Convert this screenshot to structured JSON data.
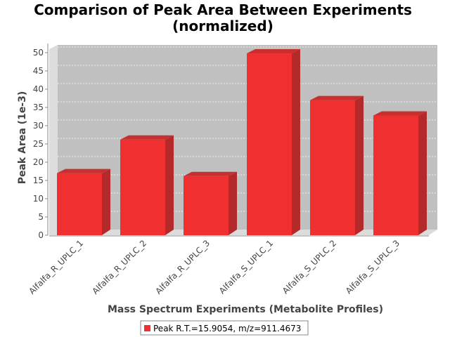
{
  "chart_data": {
    "type": "bar",
    "title": "Comparison of Peak Area Between Experiments (normalized)",
    "title_lines": [
      "Comparison of Peak Area Between Experiments",
      "(normalized)"
    ],
    "xlabel": "Mass Spectrum Experiments (Metabolite Profiles)",
    "ylabel": "Peak Area (1e-3)",
    "ylim": [
      0,
      50
    ],
    "yticks": [
      0,
      5,
      10,
      15,
      20,
      25,
      30,
      35,
      40,
      45,
      50
    ],
    "categories": [
      "Alfalfa_R_UPLC_1",
      "Alfalfa_R_UPLC_2",
      "Alfalfa_R_UPLC_3",
      "Alfalfa_S_UPLC_1",
      "Alfalfa_S_UPLC_2",
      "Alfalfa_S_UPLC_3"
    ],
    "series": [
      {
        "name": "Peak R.T.=15.9054, m/z=911.4673",
        "values": [
          17,
          26.2,
          16.2,
          49.8,
          37,
          32.8
        ]
      }
    ],
    "grid": true,
    "legend_position": "bottom",
    "colors": {
      "bar": "#f03030",
      "bar_side": "#b22a2a",
      "bar_top": "#c83030",
      "plot_bg": "#c0c0c0",
      "wall": "#dcdcdc"
    }
  }
}
